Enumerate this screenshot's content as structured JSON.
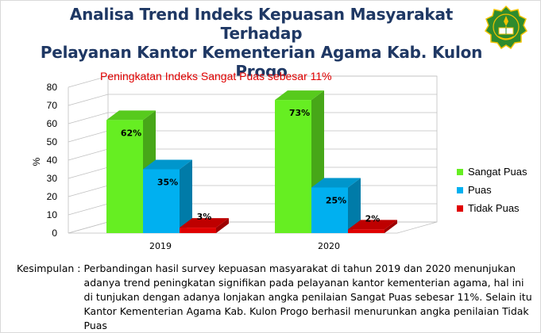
{
  "title": {
    "line1": "Analisa Trend Indeks Kepuasan Masyarakat Terhadap",
    "line2": "Pelayanan Kantor Kementerian Agama Kab. Kulon Progo"
  },
  "annotation": "Peningkatan Indeks Sangat Puas sebesar 11%",
  "conclusion": {
    "label": "Kesimpulan :",
    "text": "Perbandingan hasil survey kepuasan masyarakat di tahun 2019 dan 2020 menunjukan adanya trend peningkatan signifikan pada pelayanan kantor kementerian agama, hal ini di tunjukan dengan adanya lonjakan angka penilaian Sangat Puas sebesar 11%. Selain itu Kantor Kementerian Agama Kab. Kulon Progo berhasil menurunkan angka penilaian Tidak Puas"
  },
  "colors": {
    "sangat_puas": "#66ee22",
    "puas": "#00b0f0",
    "tidak_puas": "#e00000",
    "title": "#1f3864",
    "logo_green": "#2e8b2e",
    "logo_gold": "#f2c200"
  },
  "chart_data": {
    "type": "bar",
    "style": "3d-clustered-column",
    "categories": [
      "2019",
      "2020"
    ],
    "series": [
      {
        "name": "Sangat Puas",
        "values": [
          62,
          73
        ],
        "labels": [
          "62%",
          "73%"
        ]
      },
      {
        "name": "Puas",
        "values": [
          35,
          25
        ],
        "labels": [
          "35%",
          "25%"
        ]
      },
      {
        "name": "Tidak Puas",
        "values": [
          3,
          2
        ],
        "labels": [
          "3%",
          "2%"
        ]
      }
    ],
    "ylabel": "%",
    "ylim": [
      0,
      80
    ],
    "yticks": [
      0,
      10,
      20,
      30,
      40,
      50,
      60,
      70,
      80
    ],
    "grid": true,
    "legend": "right"
  }
}
